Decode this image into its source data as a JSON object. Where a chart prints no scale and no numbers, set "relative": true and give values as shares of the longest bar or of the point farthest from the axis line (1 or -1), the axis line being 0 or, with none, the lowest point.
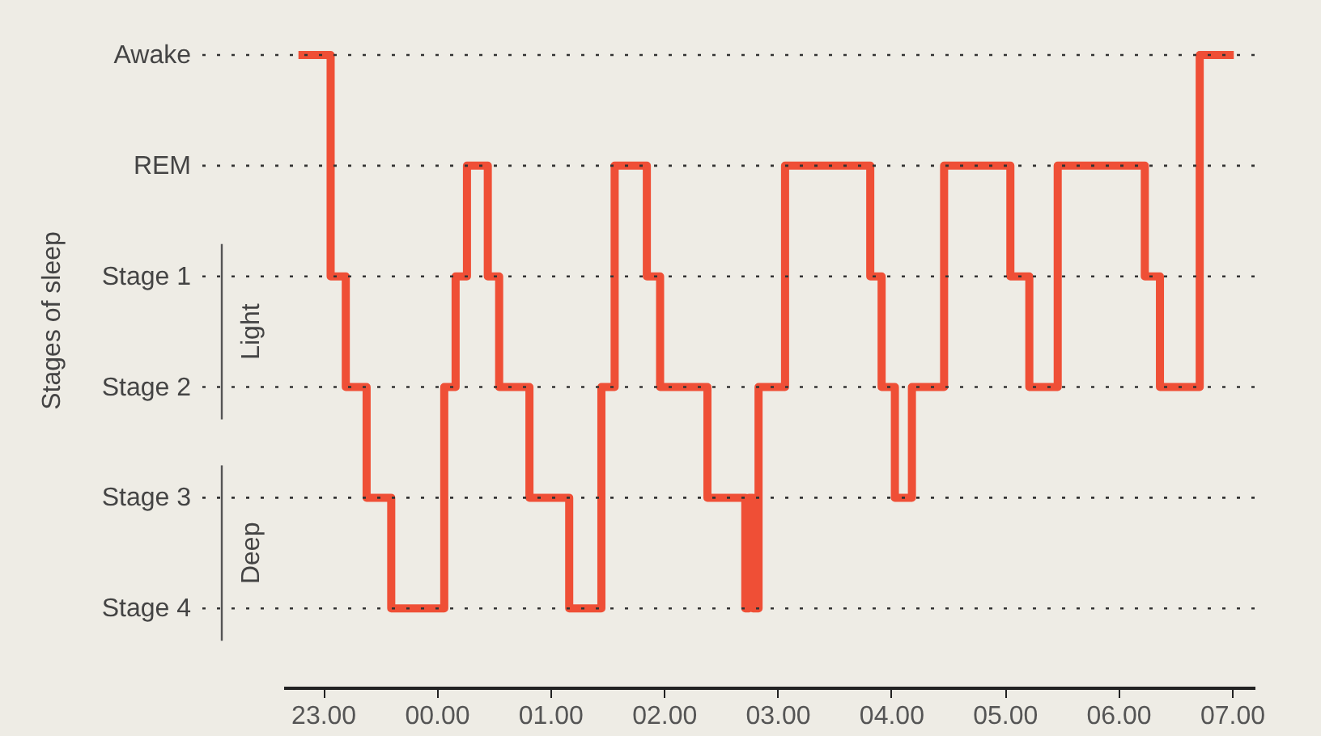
{
  "chart_data": {
    "type": "step",
    "relative": true,
    "x": [
      "2000-01-01T22:47",
      "2000-01-01T23:04",
      "2000-01-01T23:12",
      "2000-01-01T23:23",
      "2000-01-01T23:36",
      "2000-01-02T00:04",
      "2000-01-02T00:10",
      "2000-01-02T00:16",
      "2000-01-02T00:27",
      "2000-01-02T00:33",
      "2000-01-02T00:49",
      "2000-01-02T01:10",
      "2000-01-02T01:27",
      "2000-01-02T01:34",
      "2000-01-02T01:51",
      "2000-01-02T01:58",
      "2000-01-02T02:23",
      "2000-01-02T02:43",
      "2000-01-02T02:45",
      "2000-01-02T02:47",
      "2000-01-02T02:50",
      "2000-01-02T03:04",
      "2000-01-02T03:49",
      "2000-01-02T03:55",
      "2000-01-02T04:02",
      "2000-01-02T04:11",
      "2000-01-02T04:28",
      "2000-01-02T05:03",
      "2000-01-02T05:13",
      "2000-01-02T05:28",
      "2000-01-02T06:14",
      "2000-01-02T06:22",
      "2000-01-02T06:43",
      "2000-01-02T07:01"
    ],
    "series": [
      {
        "color": "#ef4f36",
        "values": [
          1.0,
          0.65,
          0.475,
          0.3,
          0.125,
          0.475,
          0.65,
          0.825,
          0.65,
          0.475,
          0.3,
          0.125,
          0.475,
          0.825,
          0.65,
          0.475,
          0.3,
          0.125,
          0.3,
          0.125,
          0.475,
          0.825,
          0.65,
          0.475,
          0.3,
          0.475,
          0.825,
          0.65,
          0.475,
          0.825,
          0.65,
          0.475,
          1.0,
          1.0
        ]
      }
    ],
    "xlim": [
      "2000-01-01T22:39",
      "2000-01-02T07:12"
    ],
    "xticks": [
      {
        "value": "2000-01-01T23:00",
        "label": "23.00"
      },
      {
        "value": "2000-01-02T00:00",
        "label": "00.00"
      },
      {
        "value": "2000-01-02T01:00",
        "label": "01.00"
      },
      {
        "value": "2000-01-02T02:00",
        "label": "02.00"
      },
      {
        "value": "2000-01-02T03:00",
        "label": "03.00"
      },
      {
        "value": "2000-01-02T04:00",
        "label": "04.00"
      },
      {
        "value": "2000-01-02T05:00",
        "label": "05.00"
      },
      {
        "value": "2000-01-02T06:00",
        "label": "06.00"
      },
      {
        "value": "2000-01-02T07:00",
        "label": "07.00"
      }
    ],
    "ref_lines": [
      {
        "axis": "y",
        "value": 1.0,
        "label": "Awake",
        "line_style": "dotted"
      },
      {
        "axis": "y",
        "value": 0.825,
        "label": "REM",
        "line_style": "dotted"
      },
      {
        "axis": "y",
        "value": 0.65,
        "label": "Stage 1",
        "line_style": "dotted"
      },
      {
        "axis": "y",
        "value": 0.475,
        "label": "Stage 2",
        "line_style": "dotted"
      },
      {
        "axis": "y",
        "value": 0.3,
        "label": "Stage 3",
        "line_style": "dotted"
      },
      {
        "axis": "y",
        "value": 0.125,
        "label": "Stage 4",
        "line_style": "dotted"
      }
    ],
    "annotations": [
      "Stages of sleep",
      "Light",
      "Deep"
    ],
    "marker": "none",
    "line_style": "solid"
  }
}
